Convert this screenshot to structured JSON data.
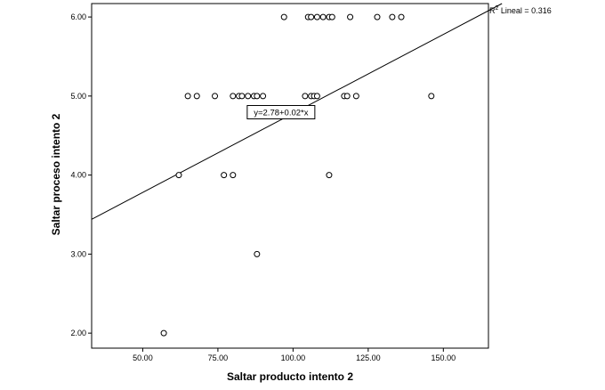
{
  "chart_data": {
    "type": "scatter",
    "xlabel": "Saltar producto intento 2",
    "ylabel": "Saltar proceso intento 2",
    "xlim": [
      33,
      165
    ],
    "ylim": [
      1.81,
      6.17
    ],
    "x_ticks": [
      50,
      75,
      100,
      125,
      150
    ],
    "x_tick_labels": [
      "50.00",
      "75.00",
      "100.00",
      "125.00",
      "150.00"
    ],
    "y_ticks": [
      2,
      3,
      4,
      5,
      6
    ],
    "y_tick_labels": [
      "2.00",
      "3.00",
      "4.00",
      "5.00",
      "6.00"
    ],
    "grid": false,
    "points": [
      {
        "x": 97,
        "y": 6
      },
      {
        "x": 105,
        "y": 6
      },
      {
        "x": 106,
        "y": 6
      },
      {
        "x": 108,
        "y": 6
      },
      {
        "x": 110,
        "y": 6
      },
      {
        "x": 112,
        "y": 6
      },
      {
        "x": 113,
        "y": 6
      },
      {
        "x": 119,
        "y": 6
      },
      {
        "x": 128,
        "y": 6
      },
      {
        "x": 133,
        "y": 6
      },
      {
        "x": 136,
        "y": 6
      },
      {
        "x": 65,
        "y": 5
      },
      {
        "x": 68,
        "y": 5
      },
      {
        "x": 74,
        "y": 5
      },
      {
        "x": 80,
        "y": 5
      },
      {
        "x": 82,
        "y": 5
      },
      {
        "x": 83,
        "y": 5
      },
      {
        "x": 85,
        "y": 5
      },
      {
        "x": 87,
        "y": 5
      },
      {
        "x": 88,
        "y": 5
      },
      {
        "x": 90,
        "y": 5
      },
      {
        "x": 104,
        "y": 5
      },
      {
        "x": 106,
        "y": 5
      },
      {
        "x": 107,
        "y": 5
      },
      {
        "x": 108,
        "y": 5
      },
      {
        "x": 117,
        "y": 5
      },
      {
        "x": 118,
        "y": 5
      },
      {
        "x": 121,
        "y": 5
      },
      {
        "x": 146,
        "y": 5
      },
      {
        "x": 62,
        "y": 4
      },
      {
        "x": 77,
        "y": 4
      },
      {
        "x": 80,
        "y": 4
      },
      {
        "x": 112,
        "y": 4
      },
      {
        "x": 88,
        "y": 3
      },
      {
        "x": 57,
        "y": 2
      }
    ],
    "fit_line": {
      "intercept": 2.78,
      "slope": 0.02
    },
    "annotation": {
      "text": "y=2.78+0.02*x",
      "x": 96,
      "y": 4.79
    },
    "r2_label": {
      "prefix": "R",
      "superscript": "2",
      "text": " Lineal = 0.316"
    }
  }
}
